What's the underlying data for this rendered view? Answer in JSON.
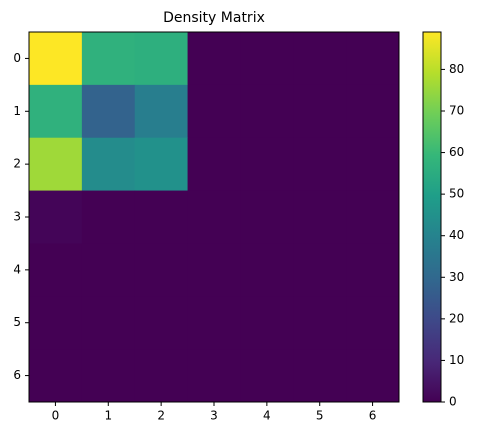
{
  "chart_data": {
    "type": "heatmap",
    "title": "Density Matrix",
    "values": [
      [
        89,
        57,
        56,
        0,
        0,
        0,
        0
      ],
      [
        57,
        28,
        38,
        0,
        0,
        0,
        0
      ],
      [
        76,
        43,
        45,
        0,
        0,
        0,
        0
      ],
      [
        1,
        0,
        0,
        0,
        0,
        0,
        0
      ],
      [
        0,
        0,
        0,
        0,
        0,
        0,
        0
      ],
      [
        0,
        0,
        0,
        0,
        0,
        0,
        0
      ],
      [
        0,
        0,
        0,
        0,
        0,
        0,
        0
      ]
    ],
    "xlim": [
      -0.5,
      6.5
    ],
    "xticks": [
      0,
      1,
      2,
      3,
      4,
      5,
      6
    ],
    "ylim": [
      6.5,
      -0.5
    ],
    "yticks": [
      0,
      1,
      2,
      3,
      4,
      5,
      6
    ],
    "colormap": "viridis",
    "clim": [
      0,
      89
    ],
    "cticks": [
      0,
      10,
      20,
      30,
      40,
      50,
      60,
      70,
      80
    ]
  }
}
